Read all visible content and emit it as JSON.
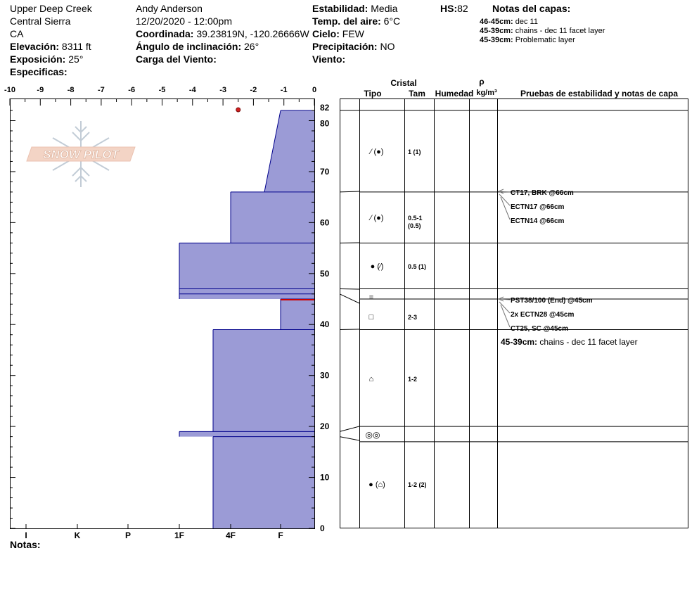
{
  "header": {
    "location": "Upper Deep Creek",
    "range": "Central Sierra",
    "state": "CA",
    "elevation_label": "Elevación:",
    "elevation_value": "8311 ft",
    "aspect_label": "Exposición:",
    "aspect_value": "25°",
    "specifics_label": "Especificas:",
    "observer": "Andy Anderson",
    "datetime": "12/20/2020 - 12:00pm",
    "coord_label": "Coordinada:",
    "coord_value": "39.23819N, -120.26666W",
    "slope_label": "Ángulo de inclinación:",
    "slope_value": "26°",
    "windload_label": "Carga del Viento:",
    "windload_value": "",
    "stability_label": "Estabilidad:",
    "stability_value": "Media",
    "airtemp_label": "Temp. del aire:",
    "airtemp_value": "6°C",
    "sky_label": "Cielo:",
    "sky_value": "FEW",
    "precip_label": "Precipitación:",
    "precip_value": "NO",
    "wind_label": "Viento:",
    "wind_value": "",
    "hs_label": "HS:",
    "hs_value": "82"
  },
  "layer_notes": {
    "title": "Notas del capas:",
    "items": [
      {
        "range": "46-45cm:",
        "text": "dec 11"
      },
      {
        "range": "45-39cm:",
        "text": "chains - dec 11 facet layer"
      },
      {
        "range": "45-39cm:",
        "text": "Problematic layer"
      }
    ]
  },
  "footer": {
    "notes_label": "Notas:"
  },
  "logo_text": "SNOW PILOT",
  "colors": {
    "profile_fill": "#9b9bd6",
    "profile_stroke": "#00008b",
    "temp_point": "#d42020",
    "weak_line": "#cc0000"
  },
  "chart_data": {
    "type": "area",
    "title": "",
    "temperature_axis": {
      "ticks": [
        "-10",
        "-9",
        "-8",
        "-7",
        "-6",
        "-5",
        "-4",
        "-3",
        "-2",
        "-1",
        "0"
      ],
      "range": [
        -10,
        0
      ]
    },
    "hardness_axis": {
      "ticks": [
        "I",
        "K",
        "P",
        "1F",
        "4F",
        "F"
      ]
    },
    "height_axis": {
      "ticks": [
        "82",
        "80",
        "70",
        "60",
        "50",
        "40",
        "30",
        "20",
        "10",
        "0"
      ],
      "range": [
        0,
        82
      ]
    },
    "snow_temperature": [
      {
        "height_cm": 82,
        "temp_c": -2.5
      }
    ],
    "hardness_profile_top_to_bottom": [
      {
        "top": 82,
        "bottom": 66,
        "hardness_top": "F+",
        "hardness_bottom": "F-"
      },
      {
        "top": 66,
        "bottom": 56,
        "hardness": "4F-"
      },
      {
        "top": 56,
        "bottom": 47,
        "hardness": "1F"
      },
      {
        "top": 47,
        "bottom": 46,
        "hardness": "1F"
      },
      {
        "top": 46,
        "bottom": 45,
        "hardness": "1F"
      },
      {
        "top": 45,
        "bottom": 39,
        "hardness": "F"
      },
      {
        "top": 39,
        "bottom": 19,
        "hardness": "4F+"
      },
      {
        "top": 19,
        "bottom": 18,
        "hardness": "1F"
      },
      {
        "top": 18,
        "bottom": 0,
        "hardness": "4F+"
      }
    ]
  },
  "table": {
    "headers": {
      "cristal": "Cristal",
      "tipo": "Tipo",
      "tam": "Tam",
      "humedad": "Humedad",
      "rho": "ρ",
      "density": "kg/m³",
      "tests": "Pruebas de estabilidad y notas de capa"
    },
    "layers": [
      {
        "type_symbol": "⁄ (●)",
        "size": "1 (1)"
      },
      {
        "type_symbol": "⁄ (●)",
        "size": "0.5-1",
        "size2": "(0.5)"
      },
      {
        "type_symbol": "● (⁄)",
        "size": "0.5 (1)"
      },
      {
        "type_symbol": "=",
        "size": ""
      },
      {
        "type_symbol": "□",
        "size": "2-3"
      },
      {
        "type_symbol": "⌂",
        "size": "1-2"
      },
      {
        "type_symbol": "◎◎",
        "size": ""
      },
      {
        "type_symbol": "● (⌂)",
        "size": "1-2 (2)"
      }
    ],
    "tests": [
      {
        "text": "CT17, BRK @66cm"
      },
      {
        "text": "ECTN17 @66cm"
      },
      {
        "text": "ECTN14 @66cm"
      },
      {
        "text": "PST38/100 (End) @45cm"
      },
      {
        "text": "2x ECTN28 @45cm"
      },
      {
        "text": "CT25, SC @45cm"
      }
    ],
    "note": {
      "range": "45-39cm:",
      "text": "chains - dec 11 facet layer"
    }
  }
}
